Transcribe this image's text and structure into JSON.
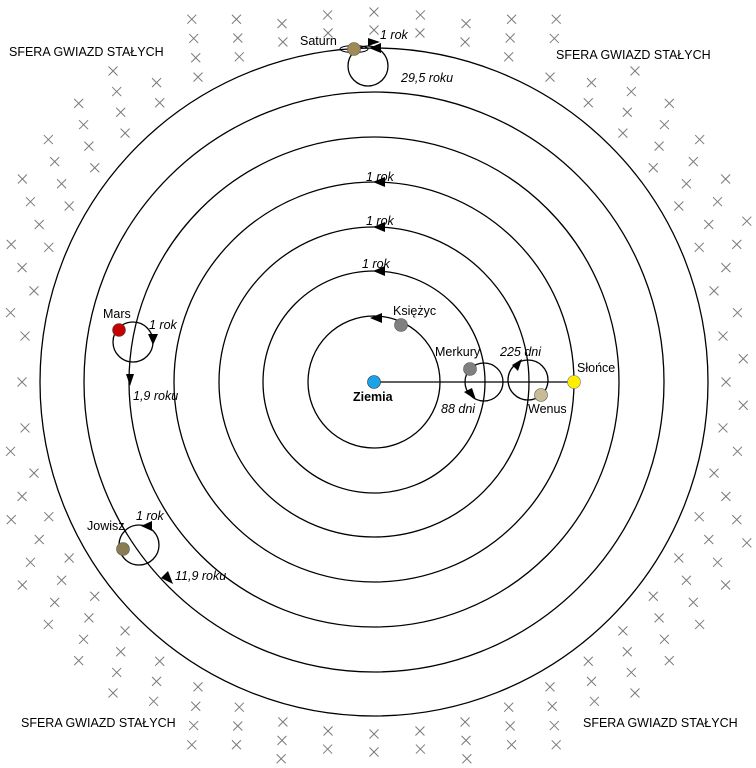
{
  "sphere_labels": [
    "SFERA GWIAZD STAŁYCH",
    "SFERA GWIAZD STAŁYCH",
    "SFERA GWIAZD STAŁYCH",
    "SFERA GWIAZD STAŁYCH"
  ],
  "center": {
    "name": "Ziemia",
    "color": "#1aa3e8"
  },
  "bodies": {
    "moon": {
      "name": "Księżyc",
      "period": "1 rok",
      "color": "#808080"
    },
    "mercury": {
      "name": "Merkury",
      "period": "1 rok",
      "epicycle_period": "88 dni",
      "color": "#808080"
    },
    "venus": {
      "name": "Wenus",
      "period": "1 rok",
      "epicycle_period": "225 dni",
      "color": "#c8bb96"
    },
    "sun": {
      "name": "Słońce",
      "period": "1 rok",
      "color": "#ffee00"
    },
    "mars": {
      "name": "Mars",
      "period": "1,9 roku",
      "epicycle_period": "1 rok",
      "color": "#c40000"
    },
    "jupiter": {
      "name": "Jowisz",
      "period": "11,9 roku",
      "epicycle_period": "1 rok",
      "color": "#8b7d52"
    },
    "saturn": {
      "name": "Saturn",
      "period": "29,5 roku",
      "epicycle_period": "1 rok",
      "color": "#a08a55"
    }
  },
  "star_marker": "×"
}
